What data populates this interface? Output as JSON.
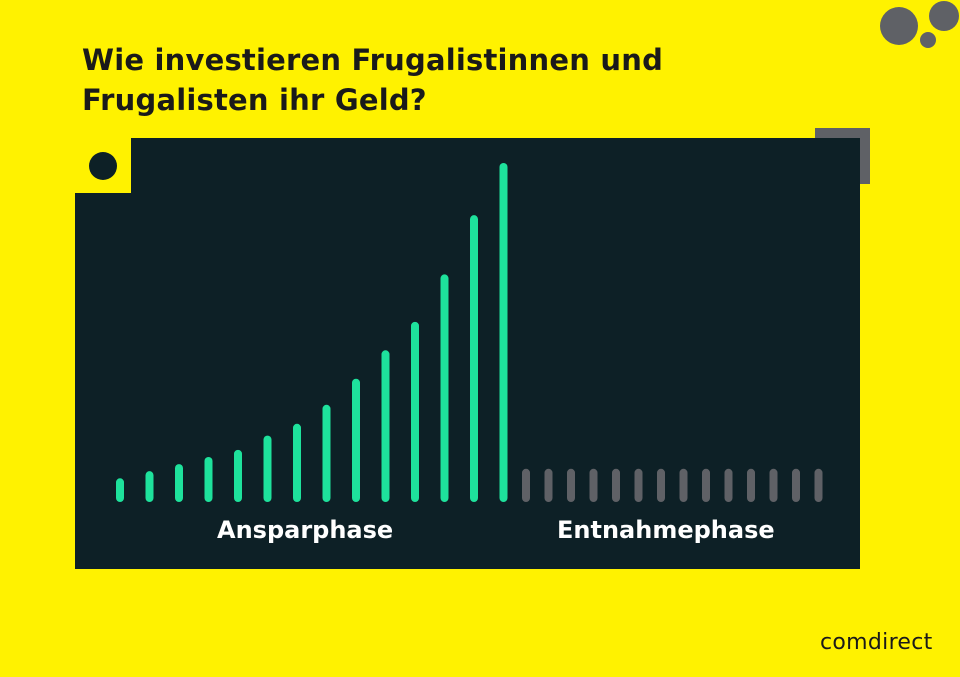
{
  "title": {
    "line1": "Wie investieren Frugalistinnen und",
    "line2": "Frugalisten ihr Geld?"
  },
  "colors": {
    "background": "#FFF200",
    "panel": "#0D2026",
    "saving_bars": "#1EE29C",
    "withdrawal_bars": "#5F6166"
  },
  "chart_data": {
    "type": "bar",
    "phases": [
      "Ansparphase",
      "Entnahmephase"
    ],
    "series": [
      {
        "values": [
          1.0,
          1.3,
          1.6,
          1.9,
          2.2,
          2.8,
          3.3,
          4.1,
          5.2,
          6.4,
          7.6,
          9.6,
          12.1,
          14.3
        ]
      },
      {
        "values": [
          1.4,
          1.4,
          1.4,
          1.4,
          1.4,
          1.4,
          1.4,
          1.4,
          1.4,
          1.4,
          1.4,
          1.4,
          1.4,
          1.4
        ]
      }
    ],
    "ylim": [
      0,
      14.3
    ]
  },
  "logo": "comdirect"
}
